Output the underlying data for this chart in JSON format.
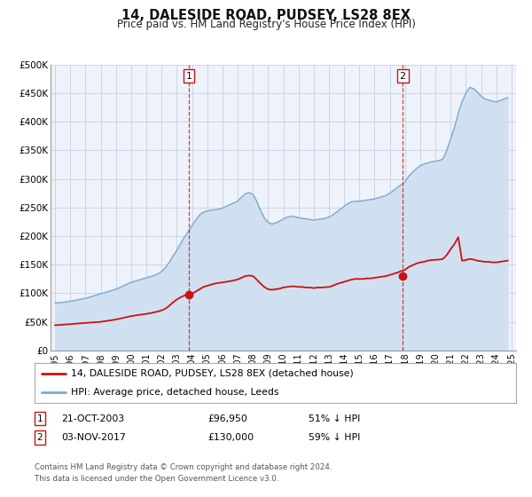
{
  "title": "14, DALESIDE ROAD, PUDSEY, LS28 8EX",
  "subtitle": "Price paid vs. HM Land Registry's House Price Index (HPI)",
  "background_color": "#ffffff",
  "plot_bg_color": "#eef2fa",
  "grid_color": "#c8d0e0",
  "hpi_color": "#7aaad0",
  "hpi_fill_color": "#d0e0f0",
  "price_color": "#cc1111",
  "ann_color": "#cc1111",
  "ylim": [
    0,
    500000
  ],
  "yticks": [
    0,
    50000,
    100000,
    150000,
    200000,
    250000,
    300000,
    350000,
    400000,
    450000,
    500000
  ],
  "ytick_labels": [
    "£0",
    "£50K",
    "£100K",
    "£150K",
    "£200K",
    "£250K",
    "£300K",
    "£350K",
    "£400K",
    "£450K",
    "£500K"
  ],
  "xlim_start": 1994.7,
  "xlim_end": 2025.3,
  "xtick_years": [
    1995,
    1996,
    1997,
    1998,
    1999,
    2000,
    2001,
    2002,
    2003,
    2004,
    2005,
    2006,
    2007,
    2008,
    2009,
    2010,
    2011,
    2012,
    2013,
    2014,
    2015,
    2016,
    2017,
    2018,
    2019,
    2020,
    2021,
    2022,
    2023,
    2024,
    2025
  ],
  "annotation1": {
    "x": 2003.8,
    "label": "1",
    "date": "21-OCT-2003",
    "price": 96950,
    "price_str": "£96,950",
    "pct": "51% ↓ HPI"
  },
  "annotation2": {
    "x": 2017.85,
    "label": "2",
    "date": "03-NOV-2017",
    "price": 130000,
    "price_str": "£130,000",
    "pct": "59% ↓ HPI"
  },
  "legend_label_price": "14, DALESIDE ROAD, PUDSEY, LS28 8EX (detached house)",
  "legend_label_hpi": "HPI: Average price, detached house, Leeds",
  "footer1": "Contains HM Land Registry data © Crown copyright and database right 2024.",
  "footer2": "This data is licensed under the Open Government Licence v3.0.",
  "hpi_data_x": [
    1995.0,
    1995.25,
    1995.5,
    1995.75,
    1996.0,
    1996.25,
    1996.5,
    1996.75,
    1997.0,
    1997.25,
    1997.5,
    1997.75,
    1998.0,
    1998.25,
    1998.5,
    1998.75,
    1999.0,
    1999.25,
    1999.5,
    1999.75,
    2000.0,
    2000.25,
    2000.5,
    2000.75,
    2001.0,
    2001.25,
    2001.5,
    2001.75,
    2002.0,
    2002.25,
    2002.5,
    2002.75,
    2003.0,
    2003.25,
    2003.5,
    2003.75,
    2004.0,
    2004.25,
    2004.5,
    2004.75,
    2005.0,
    2005.25,
    2005.5,
    2005.75,
    2006.0,
    2006.25,
    2006.5,
    2006.75,
    2007.0,
    2007.25,
    2007.5,
    2007.75,
    2008.0,
    2008.25,
    2008.5,
    2008.75,
    2009.0,
    2009.25,
    2009.5,
    2009.75,
    2010.0,
    2010.25,
    2010.5,
    2010.75,
    2011.0,
    2011.25,
    2011.5,
    2011.75,
    2012.0,
    2012.25,
    2012.5,
    2012.75,
    2013.0,
    2013.25,
    2013.5,
    2013.75,
    2014.0,
    2014.25,
    2014.5,
    2014.75,
    2015.0,
    2015.25,
    2015.5,
    2015.75,
    2016.0,
    2016.25,
    2016.5,
    2016.75,
    2017.0,
    2017.25,
    2017.5,
    2017.75,
    2018.0,
    2018.25,
    2018.5,
    2018.75,
    2019.0,
    2019.25,
    2019.5,
    2019.75,
    2020.0,
    2020.25,
    2020.5,
    2020.75,
    2021.0,
    2021.25,
    2021.5,
    2021.75,
    2022.0,
    2022.25,
    2022.5,
    2022.75,
    2023.0,
    2023.25,
    2023.5,
    2023.75,
    2024.0,
    2024.25,
    2024.5,
    2024.75
  ],
  "hpi_data_y": [
    83000,
    83500,
    84000,
    85000,
    86000,
    87000,
    88500,
    90000,
    91000,
    93000,
    95000,
    97000,
    99000,
    101000,
    103000,
    105000,
    107000,
    110000,
    113000,
    116000,
    119000,
    121000,
    123000,
    125000,
    127000,
    129000,
    131000,
    134000,
    138000,
    145000,
    154000,
    165000,
    175000,
    187000,
    198000,
    208000,
    218000,
    228000,
    237000,
    242000,
    244000,
    245000,
    246000,
    247000,
    249000,
    252000,
    255000,
    258000,
    261000,
    268000,
    274000,
    276000,
    273000,
    261000,
    245000,
    232000,
    224000,
    221000,
    223000,
    226000,
    230000,
    233000,
    235000,
    234000,
    232000,
    231000,
    230000,
    229000,
    228000,
    229000,
    230000,
    231000,
    233000,
    237000,
    242000,
    247000,
    252000,
    257000,
    260000,
    261000,
    261000,
    262000,
    263000,
    264000,
    265000,
    267000,
    269000,
    271000,
    275000,
    280000,
    285000,
    290000,
    295000,
    305000,
    312000,
    318000,
    323000,
    326000,
    328000,
    330000,
    331000,
    332000,
    335000,
    350000,
    370000,
    390000,
    415000,
    435000,
    450000,
    460000,
    458000,
    452000,
    445000,
    440000,
    438000,
    436000,
    435000,
    437000,
    440000,
    442000
  ],
  "price_data_x": [
    1995.0,
    1995.25,
    1995.5,
    1995.75,
    1996.0,
    1996.25,
    1996.5,
    1996.75,
    1997.0,
    1997.25,
    1997.5,
    1997.75,
    1998.0,
    1998.25,
    1998.5,
    1998.75,
    1999.0,
    1999.25,
    1999.5,
    1999.75,
    2000.0,
    2000.25,
    2000.5,
    2000.75,
    2001.0,
    2001.25,
    2001.5,
    2001.75,
    2002.0,
    2002.25,
    2002.5,
    2002.75,
    2003.0,
    2003.25,
    2003.5,
    2003.75,
    2004.0,
    2004.25,
    2004.5,
    2004.75,
    2005.0,
    2005.25,
    2005.5,
    2005.75,
    2006.0,
    2006.25,
    2006.5,
    2006.75,
    2007.0,
    2007.25,
    2007.5,
    2007.75,
    2008.0,
    2008.25,
    2008.5,
    2008.75,
    2009.0,
    2009.25,
    2009.5,
    2009.75,
    2010.0,
    2010.25,
    2010.5,
    2010.75,
    2011.0,
    2011.25,
    2011.5,
    2011.75,
    2012.0,
    2012.25,
    2012.5,
    2012.75,
    2013.0,
    2013.25,
    2013.5,
    2013.75,
    2014.0,
    2014.25,
    2014.5,
    2014.75,
    2015.0,
    2015.25,
    2015.5,
    2015.75,
    2016.0,
    2016.25,
    2016.5,
    2016.75,
    2017.0,
    2017.25,
    2017.5,
    2017.75,
    2018.0,
    2018.25,
    2018.5,
    2018.75,
    2019.0,
    2019.25,
    2019.5,
    2019.75,
    2020.0,
    2020.25,
    2020.5,
    2020.75,
    2021.0,
    2021.25,
    2021.5,
    2021.75,
    2022.0,
    2022.25,
    2022.5,
    2022.75,
    2023.0,
    2023.25,
    2023.5,
    2023.75,
    2024.0,
    2024.25,
    2024.5,
    2024.75
  ],
  "price_data_y": [
    44000,
    44500,
    45000,
    45500,
    46000,
    46500,
    47000,
    47500,
    48000,
    48500,
    49000,
    49500,
    50000,
    51000,
    52000,
    53000,
    54000,
    55500,
    57000,
    58500,
    60000,
    61000,
    62000,
    63000,
    64000,
    65000,
    66500,
    68000,
    70000,
    73000,
    78000,
    84000,
    89000,
    93000,
    96000,
    97500,
    99000,
    103000,
    107000,
    111000,
    113000,
    115000,
    117000,
    118000,
    119000,
    120000,
    121000,
    122500,
    124000,
    127000,
    130000,
    131000,
    130000,
    124000,
    117000,
    111000,
    107000,
    106000,
    107000,
    108000,
    110000,
    111000,
    112000,
    112000,
    111000,
    111000,
    110000,
    110000,
    109000,
    110000,
    110000,
    110500,
    111000,
    113000,
    116000,
    118000,
    120000,
    122000,
    124000,
    125000,
    125000,
    125000,
    126000,
    126000,
    127000,
    128000,
    129000,
    130000,
    132000,
    134000,
    136000,
    139000,
    141000,
    146000,
    149000,
    152000,
    154000,
    155000,
    157000,
    158000,
    158500,
    159000,
    160000,
    167000,
    177000,
    186000,
    198000,
    157000,
    158000,
    160000,
    159000,
    157000,
    156000,
    155000,
    155000,
    154000,
    154000,
    155000,
    156000,
    157000
  ]
}
